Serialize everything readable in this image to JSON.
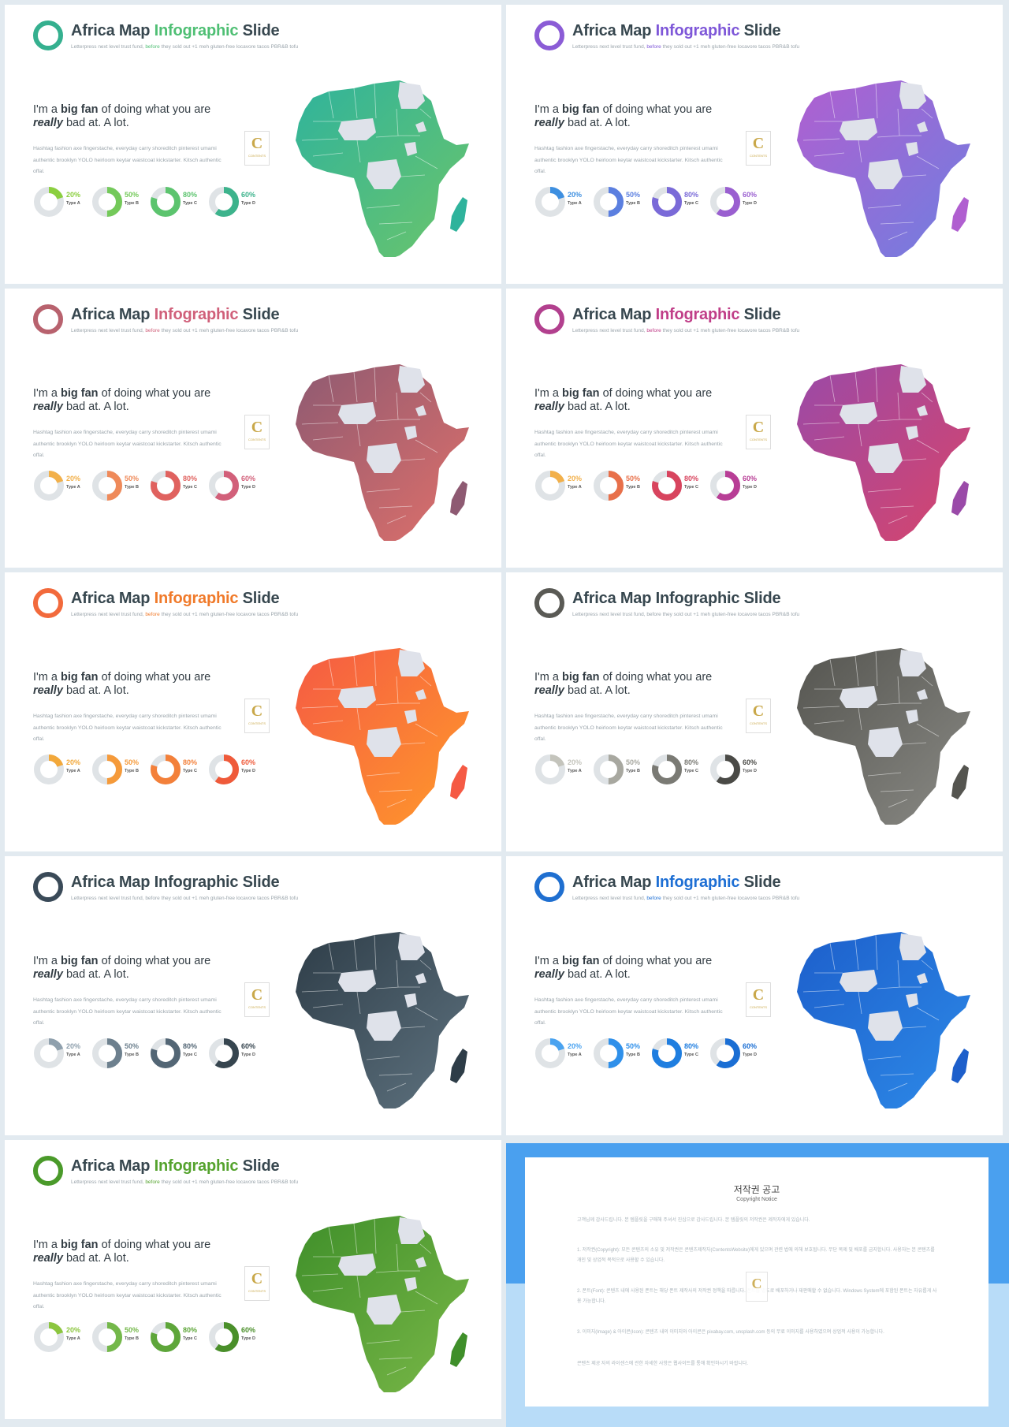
{
  "title": {
    "part1": "Africa Map",
    "part2": "Infographic",
    "part3": "Slide"
  },
  "subtitle": {
    "pre": "Letterpress next level trust fund,",
    "mid": "before",
    "post": "they sold out +1 meh gluten-free locavore tacos PBR&B tofu"
  },
  "headline": {
    "pre": "I'm a",
    "bold": "big fan",
    "mid": "of doing what you are",
    "italic": "really",
    "post": "bad at. A lot."
  },
  "body_text": "Hashtag fashion axe fingerstache, everyday carry shoreditch pinterest umami authentic brooklyn YOLO heirloom keytar waistcoat kickstarter. Kitsch authentic offal.",
  "badge": {
    "letter": "C",
    "small": "CONTENTS"
  },
  "donuts": [
    {
      "value": 20,
      "label": "20%",
      "type": "Type A"
    },
    {
      "value": 50,
      "label": "50%",
      "type": "Type B"
    },
    {
      "value": 80,
      "label": "80%",
      "type": "Type C"
    },
    {
      "value": 60,
      "label": "60%",
      "type": "Type D"
    }
  ],
  "themes": [
    {
      "name": "green-teal",
      "ring": "#35b08f",
      "accent": "#4fbf74",
      "map_from": "#2fb39c",
      "map_to": "#6cc56a",
      "title_highlight": true,
      "donut_colors": [
        "#8bcf3f",
        "#74c95a",
        "#5cc46e",
        "#3db38c"
      ]
    },
    {
      "name": "purple",
      "ring": "#8b5cd6",
      "accent": "#7e57d8",
      "map_from": "#b05fd0",
      "map_to": "#6f7fe0",
      "title_highlight": true,
      "donut_colors": [
        "#3d8fe0",
        "#5b7fe0",
        "#7a6ad8",
        "#9a5fd0"
      ]
    },
    {
      "name": "mauve-salmon",
      "ring": "#b8626e",
      "accent": "#d0607a",
      "map_from": "#8e5a72",
      "map_to": "#e0706a",
      "title_highlight": true,
      "donut_colors": [
        "#f2b04a",
        "#ef8a5a",
        "#e0625f",
        "#d2607a"
      ]
    },
    {
      "name": "magenta",
      "ring": "#b2408e",
      "accent": "#c03e88",
      "map_from": "#9a4aa8",
      "map_to": "#d8446a",
      "title_highlight": true,
      "donut_colors": [
        "#f2b04a",
        "#e8704a",
        "#d8445e",
        "#b83e96"
      ]
    },
    {
      "name": "orange",
      "ring": "#f26a3c",
      "accent": "#f07a2a",
      "map_from": "#f55a44",
      "map_to": "#ff9a2a",
      "title_highlight": true,
      "donut_colors": [
        "#f2a83a",
        "#f59a3a",
        "#f3803a",
        "#ef5a3a"
      ]
    },
    {
      "name": "gray",
      "ring": "#5a5a55",
      "accent": "#5a5a55",
      "map_from": "#555550",
      "map_to": "#8a8a85",
      "title_highlight": false,
      "donut_colors": [
        "#c4c4bc",
        "#a8a8a0",
        "#7a7a74",
        "#4a4a46"
      ]
    },
    {
      "name": "slate",
      "ring": "#3a4a58",
      "accent": "#3a4a58",
      "map_from": "#2e3d48",
      "map_to": "#5f7380",
      "title_highlight": false,
      "donut_colors": [
        "#8fa0ad",
        "#6d808e",
        "#536675",
        "#36454f"
      ]
    },
    {
      "name": "blue",
      "ring": "#1f6fd0",
      "accent": "#1e6fd4",
      "map_from": "#1d5fcb",
      "map_to": "#2d8ae8",
      "title_highlight": true,
      "donut_colors": [
        "#4aa3f0",
        "#2f90ea",
        "#1f7ee0",
        "#1a6ed4"
      ]
    },
    {
      "name": "olive-green",
      "ring": "#4a9a2a",
      "accent": "#55a32e",
      "map_from": "#3f8f2a",
      "map_to": "#7ab848",
      "title_highlight": true,
      "donut_colors": [
        "#8cc63f",
        "#74b84a",
        "#5ea63a",
        "#4a8f2a"
      ]
    }
  ],
  "copyright": {
    "title": "저작권 공고",
    "subtitle": "Copyright Notice",
    "paragraphs": [
      "고객님께 감사드립니다. 본 템플릿을 구매해 주셔서 진심으로 감사드립니다. 본 템플릿의 저작권은 제작자에게 있습니다.",
      "1. 저작권(Copyright): 모든 콘텐츠의 소유 및 저작권은 콘텐츠제작자(ContentsWebsite)에게 있으며 관련 법에 의해 보호됩니다. 무단 복제 및 배포를 금지합니다. 사용자는 본 콘텐츠를 개인 및 상업적 목적으로 사용할 수 있습니다.",
      "2. 폰트(Font): 콘텐츠 내에 사용된 폰트는 해당 폰트 제작사의 저작권 정책을 따릅니다. 폰트를 별도로 배포하거나 재판매할 수 없습니다. Windows System에 포함된 폰트는 자유롭게 사용 가능합니다.",
      "3. 이미지(Image) & 아이콘(Icon): 콘텐츠 내의 이미지와 아이콘은 pixabay.com, unsplash.com 등의 무료 이미지를 사용하였으며 상업적 사용이 가능합니다.",
      "콘텐츠 제공 자의 라이센스에 관한 자세한 사항은 웹사이트를 통해 확인하시기 바랍니다."
    ]
  }
}
